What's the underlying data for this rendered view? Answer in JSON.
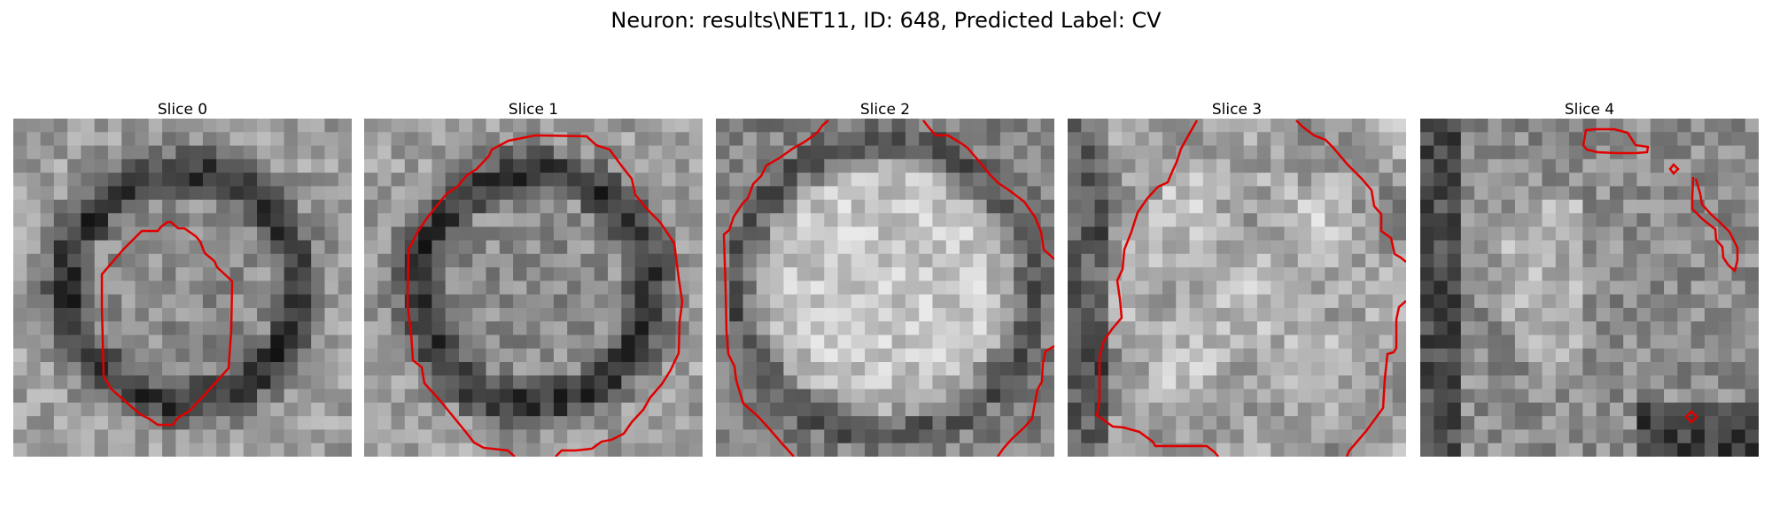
{
  "figure": {
    "title": "Neuron: results\\NET11, ID: 648, Predicted Label: CV"
  },
  "panels": [
    {
      "title": "Slice 0",
      "seed": 11,
      "style": "ring"
    },
    {
      "title": "Slice 1",
      "seed": 23,
      "style": "ring"
    },
    {
      "title": "Slice 2",
      "seed": 37,
      "style": "bright"
    },
    {
      "title": "Slice 3",
      "seed": 51,
      "style": "mixed"
    },
    {
      "title": "Slice 4",
      "seed": 67,
      "style": "edge"
    }
  ],
  "colors": {
    "contour": "#ff0000",
    "background": "#ffffff"
  },
  "image": {
    "type": "grayscale-grid",
    "grid_size": 25
  }
}
